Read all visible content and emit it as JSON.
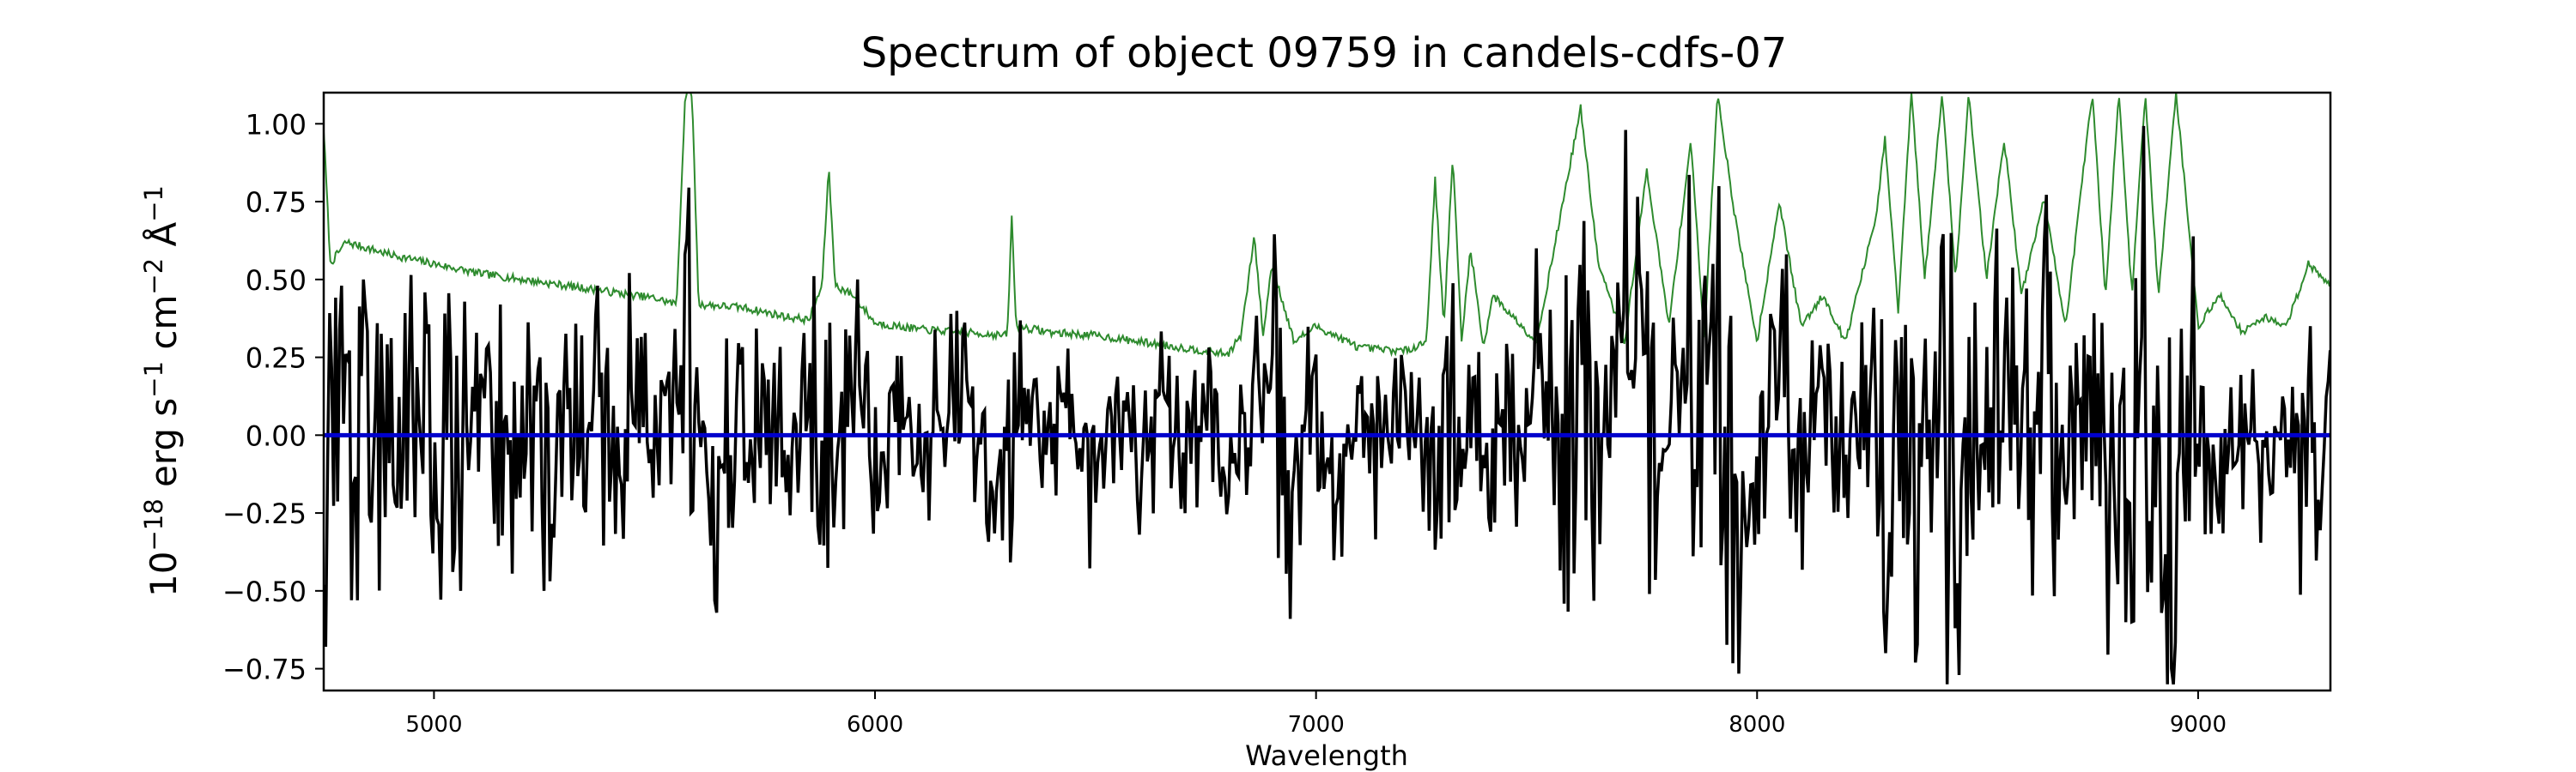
{
  "chart_data": {
    "type": "line",
    "title": "Spectrum of object 09759 in candels-cdfs-07",
    "xlabel": "Wavelength",
    "ylabel": {
      "prefix": "10",
      "exp1": "−18",
      "mid1": " erg s",
      "exp2": "−1",
      "mid2": " cm",
      "exp3": "−2",
      "mid3": " Å",
      "exp4": "−1"
    },
    "xlim": [
      4750,
      9300
    ],
    "ylim": [
      -0.82,
      1.1
    ],
    "xticks": [
      5000,
      6000,
      7000,
      8000,
      9000
    ],
    "xtick_labels": [
      "5000",
      "6000",
      "7000",
      "8000",
      "9000"
    ],
    "yticks": [
      -0.75,
      -0.5,
      -0.25,
      0.0,
      0.25,
      0.5,
      0.75,
      1.0
    ],
    "ytick_labels": [
      "−0.75",
      "−0.50",
      "−0.25",
      "0.00",
      "0.25",
      "0.50",
      "0.75",
      "1.00"
    ],
    "grid": false,
    "colors": {
      "flux": "#000000",
      "error": "#2e8b2e",
      "model": "#0000cc"
    },
    "series": [
      {
        "key": "flux",
        "wavelength_range": [
          4750,
          9300
        ],
        "baseline": 0.0,
        "points": [
          [
            4750,
            0.05
          ],
          [
            4770,
            -0.28
          ],
          [
            4790,
            0.48
          ],
          [
            4815,
            -0.53
          ],
          [
            4840,
            0.5
          ],
          [
            4870,
            -0.3
          ],
          [
            4900,
            0.28
          ],
          [
            4930,
            -0.35
          ],
          [
            4960,
            0.25
          ],
          [
            5000,
            -0.45
          ],
          [
            5030,
            0.2
          ],
          [
            5060,
            -0.5
          ],
          [
            5090,
            0.4
          ],
          [
            5120,
            -0.2
          ],
          [
            5150,
            0.3
          ],
          [
            5180,
            -0.45
          ],
          [
            5210,
            0.3
          ],
          [
            5250,
            -0.5
          ],
          [
            5290,
            0.2
          ],
          [
            5330,
            -0.3
          ],
          [
            5370,
            0.48
          ],
          [
            5410,
            -0.3
          ],
          [
            5450,
            0.35
          ],
          [
            5490,
            -0.2
          ],
          [
            5530,
            0.3
          ],
          [
            5570,
            0.58
          ],
          [
            5610,
            -0.45
          ],
          [
            5640,
            -0.57
          ],
          [
            5680,
            0.2
          ],
          [
            5720,
            -0.3
          ],
          [
            5760,
            0.25
          ],
          [
            5800,
            -0.3
          ],
          [
            5840,
            0.35
          ],
          [
            5880,
            -0.4
          ],
          [
            5920,
            0.3
          ],
          [
            5960,
            0.5
          ],
          [
            6000,
            -0.45
          ],
          [
            6050,
            0.3
          ],
          [
            6100,
            -0.2
          ],
          [
            6150,
            0.35
          ],
          [
            6200,
            0.38
          ],
          [
            6240,
            -0.33
          ],
          [
            6290,
            -0.44
          ],
          [
            6340,
            0.3
          ],
          [
            6400,
            -0.2
          ],
          [
            6450,
            0.3
          ],
          [
            6490,
            -0.36
          ],
          [
            6540,
            0.3
          ],
          [
            6600,
            -0.2
          ],
          [
            6650,
            0.3
          ],
          [
            6700,
            -0.3
          ],
          [
            6750,
            0.2
          ],
          [
            6800,
            -0.35
          ],
          [
            6850,
            0.3
          ],
          [
            6900,
            0.45
          ],
          [
            6940,
            -0.59
          ],
          [
            6990,
            0.3
          ],
          [
            7050,
            -0.3
          ],
          [
            7100,
            0.25
          ],
          [
            7150,
            -0.3
          ],
          [
            7200,
            0.28
          ],
          [
            7250,
            -0.35
          ],
          [
            7300,
            0.45
          ],
          [
            7350,
            -0.25
          ],
          [
            7400,
            0.4
          ],
          [
            7450,
            -0.3
          ],
          [
            7500,
            0.6
          ],
          [
            7550,
            -0.3
          ],
          [
            7580,
            0.4
          ],
          [
            7620,
            -0.2
          ],
          [
            7700,
            0.98
          ],
          [
            7740,
            0.45
          ],
          [
            7790,
            -0.33
          ],
          [
            7840,
            0.4
          ],
          [
            7900,
            0.55
          ],
          [
            7950,
            -0.25
          ],
          [
            8000,
            -0.45
          ],
          [
            8050,
            0.3
          ],
          [
            8100,
            -0.3
          ],
          [
            8150,
            0.3
          ],
          [
            8200,
            -0.3
          ],
          [
            8250,
            0.35
          ],
          [
            8290,
            -0.7
          ],
          [
            8320,
            0.4
          ],
          [
            8360,
            -0.73
          ],
          [
            8400,
            0.3
          ],
          [
            8450,
            -0.62
          ],
          [
            8500,
            0.35
          ],
          [
            8550,
            -0.3
          ],
          [
            8600,
            0.4
          ],
          [
            8650,
            0.63
          ],
          [
            8700,
            -0.3
          ],
          [
            8750,
            0.35
          ],
          [
            8800,
            -0.3
          ],
          [
            8830,
            0.45
          ],
          [
            8850,
            -0.6
          ],
          [
            8880,
            0.35
          ],
          [
            8910,
            -0.3
          ],
          [
            8940,
            -0.75
          ],
          [
            8980,
            0.3
          ],
          [
            9050,
            -0.3
          ],
          [
            9100,
            0.25
          ],
          [
            9150,
            -0.35
          ],
          [
            9200,
            0.27
          ],
          [
            9250,
            -0.2
          ],
          [
            9300,
            0.28
          ]
        ]
      },
      {
        "key": "error",
        "points": [
          [
            4750,
            0.98
          ],
          [
            4765,
            0.55
          ],
          [
            4800,
            0.62
          ],
          [
            4850,
            0.6
          ],
          [
            4900,
            0.58
          ],
          [
            5000,
            0.55
          ],
          [
            5100,
            0.52
          ],
          [
            5200,
            0.5
          ],
          [
            5300,
            0.48
          ],
          [
            5400,
            0.46
          ],
          [
            5500,
            0.44
          ],
          [
            5550,
            0.42
          ],
          [
            5570,
            1.1
          ],
          [
            5585,
            1.1
          ],
          [
            5600,
            0.42
          ],
          [
            5700,
            0.41
          ],
          [
            5800,
            0.38
          ],
          [
            5850,
            0.37
          ],
          [
            5880,
            0.48
          ],
          [
            5895,
            0.86
          ],
          [
            5910,
            0.48
          ],
          [
            5950,
            0.45
          ],
          [
            6000,
            0.36
          ],
          [
            6100,
            0.34
          ],
          [
            6200,
            0.33
          ],
          [
            6300,
            0.32
          ],
          [
            6310,
            0.7
          ],
          [
            6320,
            0.35
          ],
          [
            6400,
            0.33
          ],
          [
            6500,
            0.32
          ],
          [
            6600,
            0.3
          ],
          [
            6700,
            0.28
          ],
          [
            6800,
            0.26
          ],
          [
            6830,
            0.32
          ],
          [
            6860,
            0.64
          ],
          [
            6880,
            0.32
          ],
          [
            6900,
            0.55
          ],
          [
            6950,
            0.3
          ],
          [
            7000,
            0.35
          ],
          [
            7100,
            0.28
          ],
          [
            7200,
            0.27
          ],
          [
            7250,
            0.3
          ],
          [
            7270,
            0.82
          ],
          [
            7290,
            0.35
          ],
          [
            7310,
            0.9
          ],
          [
            7330,
            0.3
          ],
          [
            7350,
            0.6
          ],
          [
            7380,
            0.28
          ],
          [
            7400,
            0.45
          ],
          [
            7500,
            0.3
          ],
          [
            7600,
            1.05
          ],
          [
            7640,
            0.55
          ],
          [
            7700,
            0.3
          ],
          [
            7750,
            0.85
          ],
          [
            7800,
            0.35
          ],
          [
            7850,
            0.95
          ],
          [
            7880,
            0.3
          ],
          [
            7910,
            1.1
          ],
          [
            7950,
            0.7
          ],
          [
            8000,
            0.3
          ],
          [
            8050,
            0.75
          ],
          [
            8100,
            0.35
          ],
          [
            8150,
            0.45
          ],
          [
            8200,
            0.3
          ],
          [
            8270,
            0.7
          ],
          [
            8290,
            0.95
          ],
          [
            8320,
            0.4
          ],
          [
            8350,
            1.1
          ],
          [
            8380,
            0.5
          ],
          [
            8420,
            1.1
          ],
          [
            8450,
            0.5
          ],
          [
            8480,
            1.1
          ],
          [
            8520,
            0.5
          ],
          [
            8560,
            0.95
          ],
          [
            8600,
            0.45
          ],
          [
            8650,
            0.76
          ],
          [
            8700,
            0.35
          ],
          [
            8760,
            1.1
          ],
          [
            8790,
            0.45
          ],
          [
            8820,
            1.1
          ],
          [
            8850,
            0.45
          ],
          [
            8880,
            1.1
          ],
          [
            8910,
            0.45
          ],
          [
            8950,
            1.1
          ],
          [
            9000,
            0.35
          ],
          [
            9050,
            0.45
          ],
          [
            9100,
            0.33
          ],
          [
            9150,
            0.38
          ],
          [
            9200,
            0.35
          ],
          [
            9250,
            0.55
          ],
          [
            9300,
            0.48
          ]
        ]
      },
      {
        "key": "model",
        "points": [
          [
            4750,
            0.0
          ],
          [
            9300,
            0.0
          ]
        ]
      }
    ]
  }
}
